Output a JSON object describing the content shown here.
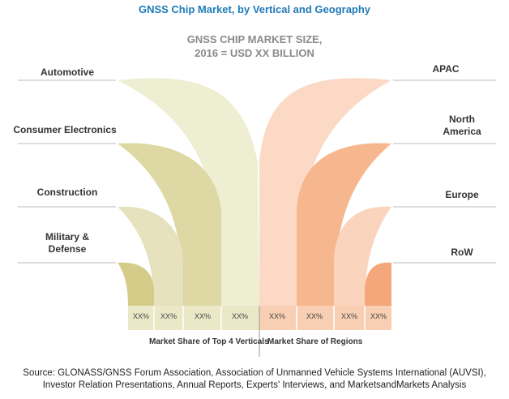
{
  "title": "GNSS Chip Market, by Vertical and Geography",
  "subtitle_line1": "GNSS CHIP MARKET SIZE,",
  "subtitle_line2": "2016 = USD XX BILLION",
  "verticals": [
    {
      "label": "Automotive",
      "share": "XX%",
      "color": "#eeeed3"
    },
    {
      "label": "Consumer Electronics",
      "share": "XX%",
      "color": "#ddd8a4"
    },
    {
      "label": "Construction",
      "share": "XX%",
      "color": "#e6e2bd"
    },
    {
      "label": "Military &\nDefense",
      "share": "XX%",
      "color": "#d5cc8a"
    }
  ],
  "regions": [
    {
      "label": "APAC",
      "share": "XX%",
      "color": "#fbd9c5"
    },
    {
      "label": "North\nAmerica",
      "share": "XX%",
      "color": "#f6b68e"
    },
    {
      "label": "Europe",
      "share": "XX%",
      "color": "#fbd4bd"
    },
    {
      "label": "RoW",
      "share": "XX%",
      "color": "#f4a77a"
    }
  ],
  "x_label_left": "Market Share of Top 4 Verticals",
  "x_label_right": "Market Share of  Regions",
  "source_line1": "Source: GLONASS/GNSS Forum Association, Association of Unmanned Vehicle Systems International (AUVSI),",
  "source_line2": "Investor Relation Presentations, Annual Reports, Experts' Interviews, and MarketsandMarkets Analysis"
}
